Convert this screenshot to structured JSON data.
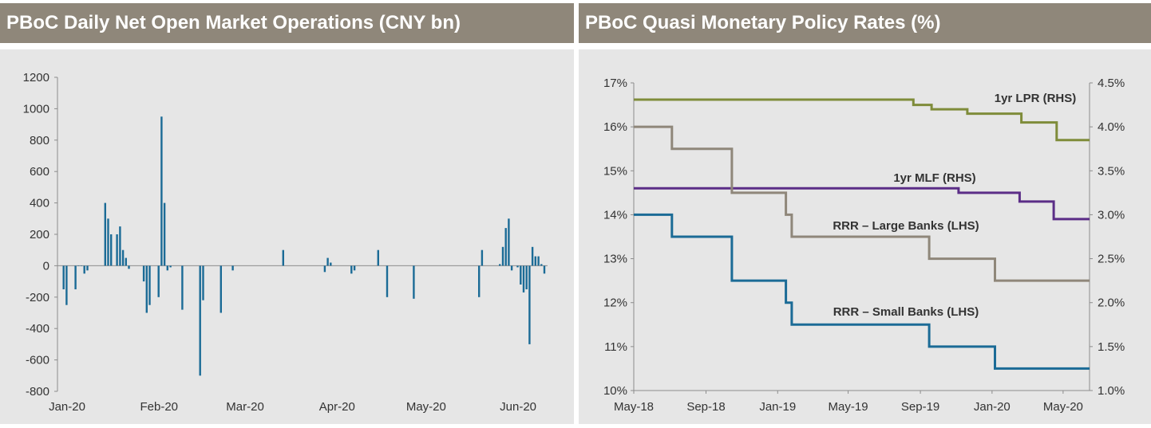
{
  "chart_data": [
    {
      "type": "bar",
      "title": "PBoC Daily Net Open Market Operations (CNY bn)",
      "ylim": [
        -800,
        1200
      ],
      "yticks": [
        1200,
        1000,
        800,
        600,
        400,
        200,
        0,
        -200,
        -400,
        -600,
        -800
      ],
      "xlim": [
        "2020-01-01",
        "2020-06-12"
      ],
      "xticks": [
        {
          "date": "2020-01-01",
          "label": "Jan-20"
        },
        {
          "date": "2020-02-01",
          "label": "Feb-20"
        },
        {
          "date": "2020-03-01",
          "label": "Mar-20"
        },
        {
          "date": "2020-04-01",
          "label": "Apr-20"
        },
        {
          "date": "2020-05-01",
          "label": "May-20"
        },
        {
          "date": "2020-06-01",
          "label": "Jun-20"
        }
      ],
      "grid": false,
      "color": "#1b6b96",
      "points": [
        {
          "x": "2020-01-02",
          "y": -150
        },
        {
          "x": "2020-01-03",
          "y": -250
        },
        {
          "x": "2020-01-06",
          "y": -150
        },
        {
          "x": "2020-01-07",
          "y": 0
        },
        {
          "x": "2020-01-08",
          "y": 0
        },
        {
          "x": "2020-01-09",
          "y": -50
        },
        {
          "x": "2020-01-10",
          "y": -30
        },
        {
          "x": "2020-01-16",
          "y": 400
        },
        {
          "x": "2020-01-17",
          "y": 300
        },
        {
          "x": "2020-01-18",
          "y": 200
        },
        {
          "x": "2020-01-20",
          "y": 200
        },
        {
          "x": "2020-01-21",
          "y": 250
        },
        {
          "x": "2020-01-22",
          "y": 100
        },
        {
          "x": "2020-01-23",
          "y": 50
        },
        {
          "x": "2020-01-24",
          "y": -20
        },
        {
          "x": "2020-01-29",
          "y": -100
        },
        {
          "x": "2020-01-30",
          "y": -300
        },
        {
          "x": "2020-01-31",
          "y": -250
        },
        {
          "x": "2020-02-03",
          "y": -200
        },
        {
          "x": "2020-02-04",
          "y": 950
        },
        {
          "x": "2020-02-05",
          "y": 400
        },
        {
          "x": "2020-02-06",
          "y": -30
        },
        {
          "x": "2020-02-07",
          "y": -10
        },
        {
          "x": "2020-02-11",
          "y": -280
        },
        {
          "x": "2020-02-17",
          "y": -700
        },
        {
          "x": "2020-02-18",
          "y": -220
        },
        {
          "x": "2020-02-24",
          "y": -300
        },
        {
          "x": "2020-02-28",
          "y": -30
        },
        {
          "x": "2020-03-16",
          "y": 100
        },
        {
          "x": "2020-03-30",
          "y": -40
        },
        {
          "x": "2020-03-31",
          "y": 50
        },
        {
          "x": "2020-04-01",
          "y": 20
        },
        {
          "x": "2020-04-08",
          "y": -50
        },
        {
          "x": "2020-04-09",
          "y": -30
        },
        {
          "x": "2020-04-17",
          "y": 100
        },
        {
          "x": "2020-04-20",
          "y": -200
        },
        {
          "x": "2020-04-29",
          "y": -210
        },
        {
          "x": "2020-05-21",
          "y": -200
        },
        {
          "x": "2020-05-22",
          "y": 100
        },
        {
          "x": "2020-05-28",
          "y": 10
        },
        {
          "x": "2020-05-29",
          "y": 120
        },
        {
          "x": "2020-05-30",
          "y": 240
        },
        {
          "x": "2020-05-31",
          "y": 300
        },
        {
          "x": "2020-06-01",
          "y": -30
        },
        {
          "x": "2020-06-03",
          "y": -10
        },
        {
          "x": "2020-06-04",
          "y": -120
        },
        {
          "x": "2020-06-05",
          "y": -170
        },
        {
          "x": "2020-06-06",
          "y": -150
        },
        {
          "x": "2020-06-07",
          "y": -500
        },
        {
          "x": "2020-06-08",
          "y": 120
        },
        {
          "x": "2020-06-09",
          "y": 60
        },
        {
          "x": "2020-06-10",
          "y": 60
        },
        {
          "x": "2020-06-11",
          "y": 10
        },
        {
          "x": "2020-06-12",
          "y": -50
        }
      ]
    },
    {
      "type": "line",
      "title": "PBoC Quasi Monetary Policy Rates (%)",
      "xlim": [
        "2018-05-01",
        "2020-06-15"
      ],
      "xticks": [
        {
          "date": "2018-05-01",
          "label": "May-18"
        },
        {
          "date": "2018-09-01",
          "label": "Sep-18"
        },
        {
          "date": "2019-01-01",
          "label": "Jan-19"
        },
        {
          "date": "2019-05-01",
          "label": "May-19"
        },
        {
          "date": "2019-09-01",
          "label": "Sep-19"
        },
        {
          "date": "2020-01-01",
          "label": "Jan-20"
        },
        {
          "date": "2020-05-01",
          "label": "May-20"
        }
      ],
      "ylim_left": [
        10,
        17
      ],
      "yticks_left": [
        "17%",
        "16%",
        "15%",
        "14%",
        "13%",
        "12%",
        "11%",
        "10%"
      ],
      "ylim_right": [
        1.0,
        4.5
      ],
      "yticks_right": [
        "4.5%",
        "4.0%",
        "3.5%",
        "3.0%",
        "2.5%",
        "2.0%",
        "1.5%",
        "1.0%"
      ],
      "grid": false,
      "series": [
        {
          "name": "1yr LPR (RHS)",
          "axis": "right",
          "color": "#7f8c3a",
          "steps": [
            {
              "x": "2018-05-01",
              "y": 4.31
            },
            {
              "x": "2019-08-20",
              "y": 4.25
            },
            {
              "x": "2019-09-20",
              "y": 4.2
            },
            {
              "x": "2019-11-20",
              "y": 4.15
            },
            {
              "x": "2020-02-20",
              "y": 4.05
            },
            {
              "x": "2020-04-20",
              "y": 3.85
            },
            {
              "x": "2020-06-15",
              "y": 3.85
            }
          ]
        },
        {
          "name": "1yr MLF (RHS)",
          "axis": "right",
          "color": "#5b2d87",
          "steps": [
            {
              "x": "2018-05-01",
              "y": 3.3
            },
            {
              "x": "2019-11-05",
              "y": 3.25
            },
            {
              "x": "2020-02-17",
              "y": 3.15
            },
            {
              "x": "2020-04-15",
              "y": 2.95
            },
            {
              "x": "2020-06-15",
              "y": 2.95
            }
          ]
        },
        {
          "name": "RRR – Large Banks (LHS)",
          "axis": "left",
          "color": "#8f877a",
          "steps": [
            {
              "x": "2018-05-01",
              "y": 16.0
            },
            {
              "x": "2018-07-05",
              "y": 15.5
            },
            {
              "x": "2018-10-15",
              "y": 14.5
            },
            {
              "x": "2019-01-15",
              "y": 14.0
            },
            {
              "x": "2019-01-25",
              "y": 13.5
            },
            {
              "x": "2019-09-16",
              "y": 13.0
            },
            {
              "x": "2020-01-06",
              "y": 12.5
            },
            {
              "x": "2020-06-15",
              "y": 12.5
            }
          ]
        },
        {
          "name": "RRR – Small Banks (LHS)",
          "axis": "left",
          "color": "#1b6b96",
          "steps": [
            {
              "x": "2018-05-01",
              "y": 14.0
            },
            {
              "x": "2018-07-05",
              "y": 13.5
            },
            {
              "x": "2018-10-15",
              "y": 12.5
            },
            {
              "x": "2019-01-15",
              "y": 12.0
            },
            {
              "x": "2019-01-25",
              "y": 11.5
            },
            {
              "x": "2019-09-16",
              "y": 11.0
            },
            {
              "x": "2020-01-06",
              "y": 10.5
            },
            {
              "x": "2020-06-15",
              "y": 10.5
            }
          ]
        }
      ]
    }
  ]
}
